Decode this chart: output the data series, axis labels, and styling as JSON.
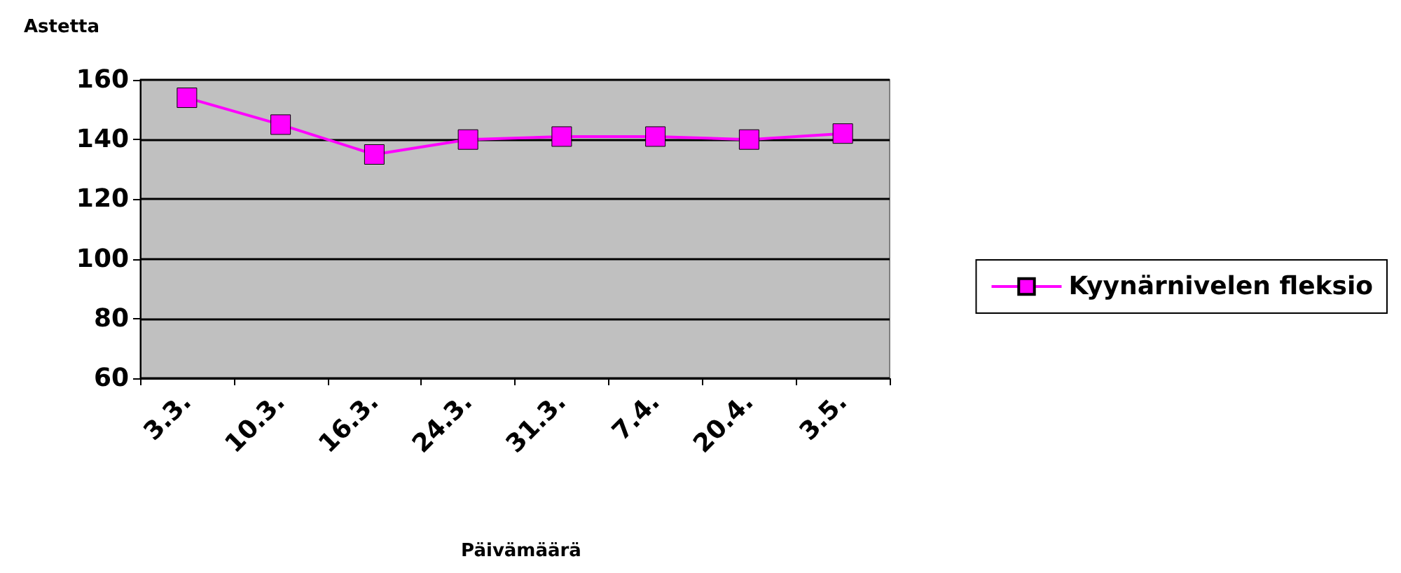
{
  "chart_data": {
    "type": "line",
    "ylabel": "Astetta",
    "xlabel": "Päivämäärä",
    "categories": [
      "3.3.",
      "10.3.",
      "16.3.",
      "24.3.",
      "31.3.",
      "7.4.",
      "20.4.",
      "3.5."
    ],
    "series": [
      {
        "name": "Kyynärnivelen fleksio",
        "color": "#ff00ff",
        "values": [
          154,
          145,
          135,
          140,
          141,
          141,
          140,
          142
        ]
      }
    ],
    "ylim": [
      60,
      160
    ],
    "yticks": [
      60,
      80,
      100,
      120,
      140,
      160
    ],
    "grid": "y",
    "legend": "right",
    "marker": "square",
    "line_style": "solid"
  }
}
